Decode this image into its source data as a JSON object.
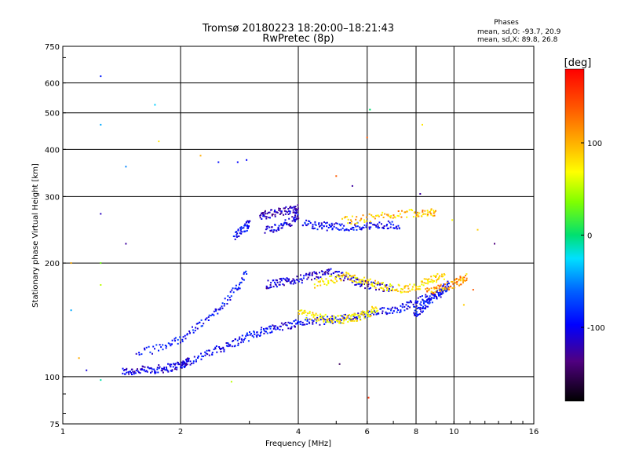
{
  "chart_data": {
    "type": "scatter",
    "title": "Tromsø 20180223 18:20:00–18:21:43",
    "subtitle": "RwPretec (8p)",
    "xlabel": "Frequency [MHz]",
    "ylabel": "Stationary phase Virtual Height [km]",
    "x_scale": "log",
    "y_scale": "log",
    "xlim": [
      1,
      16
    ],
    "ylim": [
      75,
      750
    ],
    "x_ticks": [
      "1",
      "2",
      "4",
      "6",
      "8",
      "10",
      "16"
    ],
    "y_ticks": [
      "75",
      "100",
      "200",
      "300",
      "400",
      "500",
      "600",
      "750"
    ],
    "grid": true,
    "phases_box": {
      "heading": "Phases",
      "line_o": "mean, sd,O: -93.7, 20.9",
      "line_x": "mean, sd,X:  89.8, 26.8"
    },
    "colorbar": {
      "label": "[deg]",
      "range": [
        -180,
        180
      ],
      "ticks": [
        "100",
        "0",
        "-100"
      ],
      "tick_values": [
        100,
        0,
        -100
      ]
    },
    "traces": [
      {
        "f": [
          1.42,
          1.5,
          1.6,
          1.7,
          1.8,
          1.9,
          2.0,
          2.05,
          2.1
        ],
        "h": [
          103,
          103.5,
          104,
          104.5,
          105,
          106,
          107.5,
          108.5,
          110
        ],
        "phase": -110
      },
      {
        "f": [
          2.1,
          2.3,
          2.5,
          2.7,
          2.9,
          3.1,
          3.3,
          3.5,
          3.8,
          4.0,
          4.3,
          4.7,
          5.0,
          5.4,
          5.8,
          6.3,
          6.8,
          7.3,
          7.8,
          8.3,
          8.8,
          9.3
        ],
        "h": [
          110,
          114,
          118,
          122,
          126,
          130,
          133,
          135,
          137,
          139,
          140,
          141,
          142,
          143,
          145,
          147,
          150,
          152,
          156,
          160,
          163,
          167
        ],
        "phase": -100
      },
      {
        "f": [
          4.0,
          4.3,
          4.6,
          4.9,
          5.2,
          5.5,
          5.8,
          6.1,
          6.4
        ],
        "h": [
          148,
          145,
          143,
          142,
          142,
          143,
          145,
          148,
          152
        ],
        "phase": 95
      },
      {
        "f": [
          1.55,
          1.8,
          2.0,
          2.2,
          2.4,
          2.6,
          2.8,
          2.95
        ],
        "h": [
          115,
          120,
          126,
          135,
          145,
          158,
          172,
          190
        ],
        "phase": -95
      },
      {
        "f": [
          2.75,
          2.85,
          2.95,
          3.0
        ],
        "h": [
          235,
          243,
          250,
          255
        ],
        "phase": -100
      },
      {
        "f": [
          3.3,
          3.5,
          3.7,
          3.9,
          4.2,
          4.5,
          4.8,
          5.2,
          5.6,
          6.0,
          6.5,
          7.0
        ],
        "h": [
          175,
          177,
          178,
          180,
          183,
          186,
          189,
          184,
          179,
          175,
          172,
          170
        ],
        "phase": -115
      },
      {
        "f": [
          4.4,
          4.8,
          5.2,
          5.6,
          6.0,
          6.5,
          7.0,
          7.5,
          8.0,
          8.5,
          9.0,
          9.5
        ],
        "h": [
          176,
          180,
          185,
          182,
          178,
          174,
          172,
          170,
          173,
          178,
          182,
          186
        ],
        "phase": 100
      },
      {
        "f": [
          3.3,
          3.5,
          3.7,
          3.9,
          4.0
        ],
        "h": [
          245,
          248,
          253,
          260,
          268
        ],
        "phase": -110
      },
      {
        "f": [
          4.1,
          4.4,
          4.7,
          5.0,
          5.4,
          5.8,
          6.3,
          6.8,
          7.3
        ],
        "h": [
          255,
          252,
          250,
          249,
          250,
          250,
          251,
          252,
          253
        ],
        "phase": -100
      },
      {
        "f": [
          5.2,
          5.8,
          6.5,
          7.2,
          8.0,
          8.6,
          9.0
        ],
        "h": [
          258,
          262,
          266,
          270,
          272,
          273,
          272
        ],
        "phase": 110
      },
      {
        "f": [
          3.2,
          3.3,
          3.5,
          3.7,
          3.9,
          4.0
        ],
        "h": [
          265,
          268,
          272,
          275,
          277,
          279
        ],
        "phase": -120
      },
      {
        "f": [
          7.9,
          8.2,
          8.5,
          8.8,
          9.2,
          9.5,
          9.7
        ],
        "h": [
          145,
          150,
          156,
          162,
          168,
          172,
          176
        ],
        "phase": -100
      },
      {
        "f": [
          8.5,
          9.0,
          9.5,
          10.0,
          10.4,
          10.8
        ],
        "h": [
          168,
          170,
          172,
          176,
          180,
          184
        ],
        "phase": 120
      }
    ],
    "points": [
      {
        "f": 1.25,
        "h": 625,
        "phase": -90
      },
      {
        "f": 1.72,
        "h": 525,
        "phase": -30
      },
      {
        "f": 1.25,
        "h": 465,
        "phase": -40
      },
      {
        "f": 1.76,
        "h": 420,
        "phase": 100
      },
      {
        "f": 1.45,
        "h": 360,
        "phase": -50
      },
      {
        "f": 2.25,
        "h": 385,
        "phase": 120
      },
      {
        "f": 2.5,
        "h": 370,
        "phase": -95
      },
      {
        "f": 2.8,
        "h": 370,
        "phase": -100
      },
      {
        "f": 2.95,
        "h": 375,
        "phase": -100
      },
      {
        "f": 1.25,
        "h": 270,
        "phase": -120
      },
      {
        "f": 1.45,
        "h": 225,
        "phase": -130
      },
      {
        "f": 1.25,
        "h": 200,
        "phase": 30
      },
      {
        "f": 1.05,
        "h": 200,
        "phase": 120
      },
      {
        "f": 1.25,
        "h": 175,
        "phase": 60
      },
      {
        "f": 1.05,
        "h": 150,
        "phase": -40
      },
      {
        "f": 1.1,
        "h": 112,
        "phase": 120
      },
      {
        "f": 1.15,
        "h": 104,
        "phase": -110
      },
      {
        "f": 1.25,
        "h": 98,
        "phase": -10
      },
      {
        "f": 2.7,
        "h": 97,
        "phase": 60
      },
      {
        "f": 5.1,
        "h": 108,
        "phase": -150
      },
      {
        "f": 6.05,
        "h": 88,
        "phase": 160
      },
      {
        "f": 6.0,
        "h": 430,
        "phase": 140
      },
      {
        "f": 6.1,
        "h": 510,
        "phase": 0
      },
      {
        "f": 8.3,
        "h": 465,
        "phase": 100
      },
      {
        "f": 5.5,
        "h": 320,
        "phase": -130
      },
      {
        "f": 5.0,
        "h": 340,
        "phase": 140
      },
      {
        "f": 8.2,
        "h": 305,
        "phase": -130
      },
      {
        "f": 12.7,
        "h": 225,
        "phase": -140
      },
      {
        "f": 11.5,
        "h": 245,
        "phase": 110
      },
      {
        "f": 9.9,
        "h": 260,
        "phase": 90
      },
      {
        "f": 10.6,
        "h": 155,
        "phase": 110
      },
      {
        "f": 11.2,
        "h": 170,
        "phase": 140
      }
    ]
  }
}
